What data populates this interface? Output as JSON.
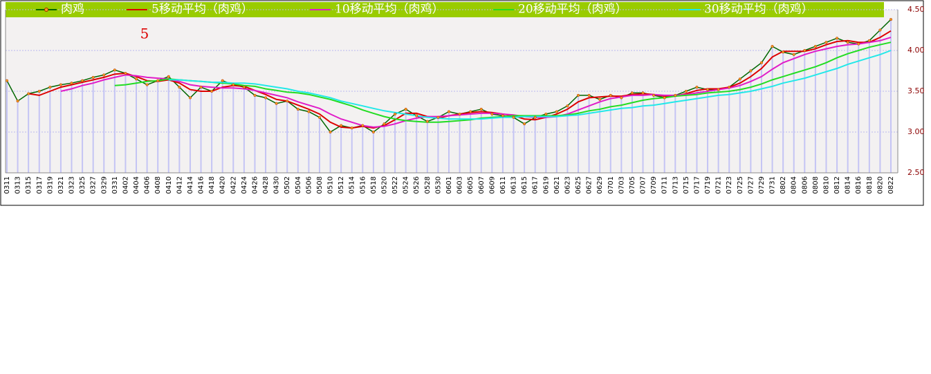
{
  "chart_data": {
    "type": "line",
    "annotation": "5",
    "categories": [
      "0311",
      "0313",
      "0315",
      "0317",
      "0319",
      "0321",
      "0323",
      "0325",
      "0327",
      "0329",
      "0331",
      "0402",
      "0404",
      "0406",
      "0408",
      "0410",
      "0412",
      "0414",
      "0416",
      "0418",
      "0420",
      "0422",
      "0424",
      "0426",
      "0428",
      "0430",
      "0502",
      "0504",
      "0506",
      "0508",
      "0510",
      "0512",
      "0514",
      "0516",
      "0518",
      "0520",
      "0522",
      "0524",
      "0526",
      "0528",
      "0530",
      "0601",
      "0603",
      "0605",
      "0607",
      "0609",
      "0611",
      "0613",
      "0615",
      "0617",
      "0619",
      "0621",
      "0623",
      "0625",
      "0627",
      "0629",
      "0701",
      "0703",
      "0705",
      "0707",
      "0709",
      "0711",
      "0713",
      "0715",
      "0717",
      "0719",
      "0721",
      "0723",
      "0725",
      "0727",
      "0729",
      "0731",
      "0802",
      "0804",
      "0806",
      "0808",
      "0810",
      "0812",
      "0814",
      "0816",
      "0818",
      "0820",
      "0822"
    ],
    "series": [
      {
        "name": "肉鸡",
        "color": "#006600",
        "values": [
          3.63,
          3.38,
          3.47,
          3.5,
          3.55,
          3.58,
          3.6,
          3.63,
          3.67,
          3.7,
          3.76,
          3.72,
          3.65,
          3.58,
          3.63,
          3.68,
          3.55,
          3.42,
          3.55,
          3.5,
          3.63,
          3.58,
          3.55,
          3.45,
          3.42,
          3.35,
          3.38,
          3.28,
          3.25,
          3.18,
          3.0,
          3.08,
          3.05,
          3.08,
          3.0,
          3.1,
          3.22,
          3.28,
          3.2,
          3.13,
          3.18,
          3.25,
          3.22,
          3.25,
          3.28,
          3.22,
          3.2,
          3.18,
          3.1,
          3.18,
          3.22,
          3.25,
          3.32,
          3.45,
          3.45,
          3.4,
          3.45,
          3.42,
          3.48,
          3.48,
          3.45,
          3.42,
          3.45,
          3.5,
          3.55,
          3.52,
          3.52,
          3.55,
          3.65,
          3.75,
          3.85,
          4.05,
          3.98,
          3.95,
          4.0,
          4.05,
          4.1,
          4.15,
          4.1,
          4.08,
          4.12,
          4.25,
          4.38
        ]
      },
      {
        "name": "5移动平均（肉鸡）",
        "color": "#dd0000",
        "values": [
          null,
          null,
          3.47,
          3.45,
          3.5,
          3.55,
          3.58,
          3.61,
          3.64,
          3.67,
          3.71,
          3.72,
          3.68,
          3.63,
          3.62,
          3.64,
          3.6,
          3.52,
          3.5,
          3.5,
          3.55,
          3.57,
          3.56,
          3.51,
          3.46,
          3.4,
          3.38,
          3.33,
          3.28,
          3.22,
          3.12,
          3.06,
          3.05,
          3.07,
          3.05,
          3.08,
          3.15,
          3.23,
          3.23,
          3.19,
          3.17,
          3.2,
          3.22,
          3.24,
          3.25,
          3.24,
          3.22,
          3.2,
          3.16,
          3.15,
          3.18,
          3.22,
          3.28,
          3.37,
          3.42,
          3.43,
          3.44,
          3.44,
          3.46,
          3.47,
          3.46,
          3.44,
          3.44,
          3.47,
          3.51,
          3.53,
          3.53,
          3.55,
          3.6,
          3.68,
          3.78,
          3.92,
          3.99,
          3.99,
          3.99,
          4.02,
          4.07,
          4.11,
          4.12,
          4.1,
          4.1,
          4.16,
          4.24
        ]
      },
      {
        "name": "10移动平均（肉鸡）",
        "color": "#e01cc8",
        "values": [
          null,
          null,
          null,
          null,
          null,
          3.5,
          3.53,
          3.57,
          3.6,
          3.64,
          3.67,
          3.7,
          3.69,
          3.67,
          3.66,
          3.65,
          3.62,
          3.58,
          3.56,
          3.55,
          3.54,
          3.54,
          3.53,
          3.51,
          3.48,
          3.45,
          3.42,
          3.37,
          3.33,
          3.29,
          3.22,
          3.16,
          3.12,
          3.08,
          3.06,
          3.07,
          3.1,
          3.14,
          3.17,
          3.19,
          3.19,
          3.2,
          3.21,
          3.22,
          3.23,
          3.23,
          3.22,
          3.21,
          3.19,
          3.18,
          3.18,
          3.19,
          3.22,
          3.27,
          3.32,
          3.37,
          3.41,
          3.43,
          3.45,
          3.45,
          3.46,
          3.45,
          3.45,
          3.46,
          3.48,
          3.5,
          3.52,
          3.54,
          3.57,
          3.62,
          3.68,
          3.77,
          3.85,
          3.9,
          3.95,
          3.99,
          4.02,
          4.05,
          4.07,
          4.08,
          4.1,
          4.12,
          4.16
        ]
      },
      {
        "name": "20移动平均（肉鸡）",
        "color": "#22dd22",
        "values": [
          null,
          null,
          null,
          null,
          null,
          null,
          null,
          null,
          null,
          null,
          3.57,
          3.58,
          3.6,
          3.62,
          3.63,
          3.65,
          3.64,
          3.63,
          3.62,
          3.61,
          3.6,
          3.59,
          3.57,
          3.56,
          3.53,
          3.51,
          3.49,
          3.48,
          3.46,
          3.43,
          3.4,
          3.36,
          3.32,
          3.27,
          3.23,
          3.19,
          3.16,
          3.14,
          3.13,
          3.12,
          3.12,
          3.13,
          3.14,
          3.15,
          3.17,
          3.18,
          3.19,
          3.2,
          3.2,
          3.2,
          3.2,
          3.2,
          3.21,
          3.23,
          3.26,
          3.28,
          3.31,
          3.33,
          3.36,
          3.39,
          3.41,
          3.42,
          3.44,
          3.45,
          3.46,
          3.48,
          3.49,
          3.5,
          3.52,
          3.55,
          3.59,
          3.64,
          3.68,
          3.72,
          3.76,
          3.8,
          3.85,
          3.91,
          3.96,
          4.0,
          4.04,
          4.07,
          4.1
        ]
      },
      {
        "name": "30移动平均（肉鸡）",
        "color": "#22e8e8",
        "values": [
          null,
          null,
          null,
          null,
          null,
          null,
          null,
          null,
          null,
          null,
          null,
          null,
          null,
          null,
          null,
          3.64,
          3.64,
          3.63,
          3.62,
          3.61,
          3.61,
          3.6,
          3.6,
          3.59,
          3.57,
          3.55,
          3.53,
          3.5,
          3.48,
          3.45,
          3.42,
          3.38,
          3.35,
          3.32,
          3.29,
          3.26,
          3.24,
          3.22,
          3.2,
          3.18,
          3.17,
          3.16,
          3.16,
          3.16,
          3.16,
          3.17,
          3.18,
          3.18,
          3.19,
          3.19,
          3.19,
          3.19,
          3.2,
          3.21,
          3.23,
          3.25,
          3.27,
          3.29,
          3.3,
          3.32,
          3.33,
          3.35,
          3.37,
          3.39,
          3.41,
          3.43,
          3.45,
          3.46,
          3.48,
          3.5,
          3.53,
          3.56,
          3.6,
          3.63,
          3.66,
          3.7,
          3.74,
          3.78,
          3.83,
          3.87,
          3.91,
          3.95,
          4.0
        ]
      }
    ],
    "bar_color": "#c4c4f4",
    "ylim": [
      2.5,
      4.5
    ],
    "yticks": [
      {
        "value": 2.5,
        "label": "2.50"
      },
      {
        "value": 3,
        "label": "3.00"
      },
      {
        "value": 3.5,
        "label": "3.50"
      },
      {
        "value": 4,
        "label": "4.00"
      },
      {
        "value": 4.5,
        "label": "4.50"
      }
    ],
    "grid": true,
    "legend": "top"
  }
}
